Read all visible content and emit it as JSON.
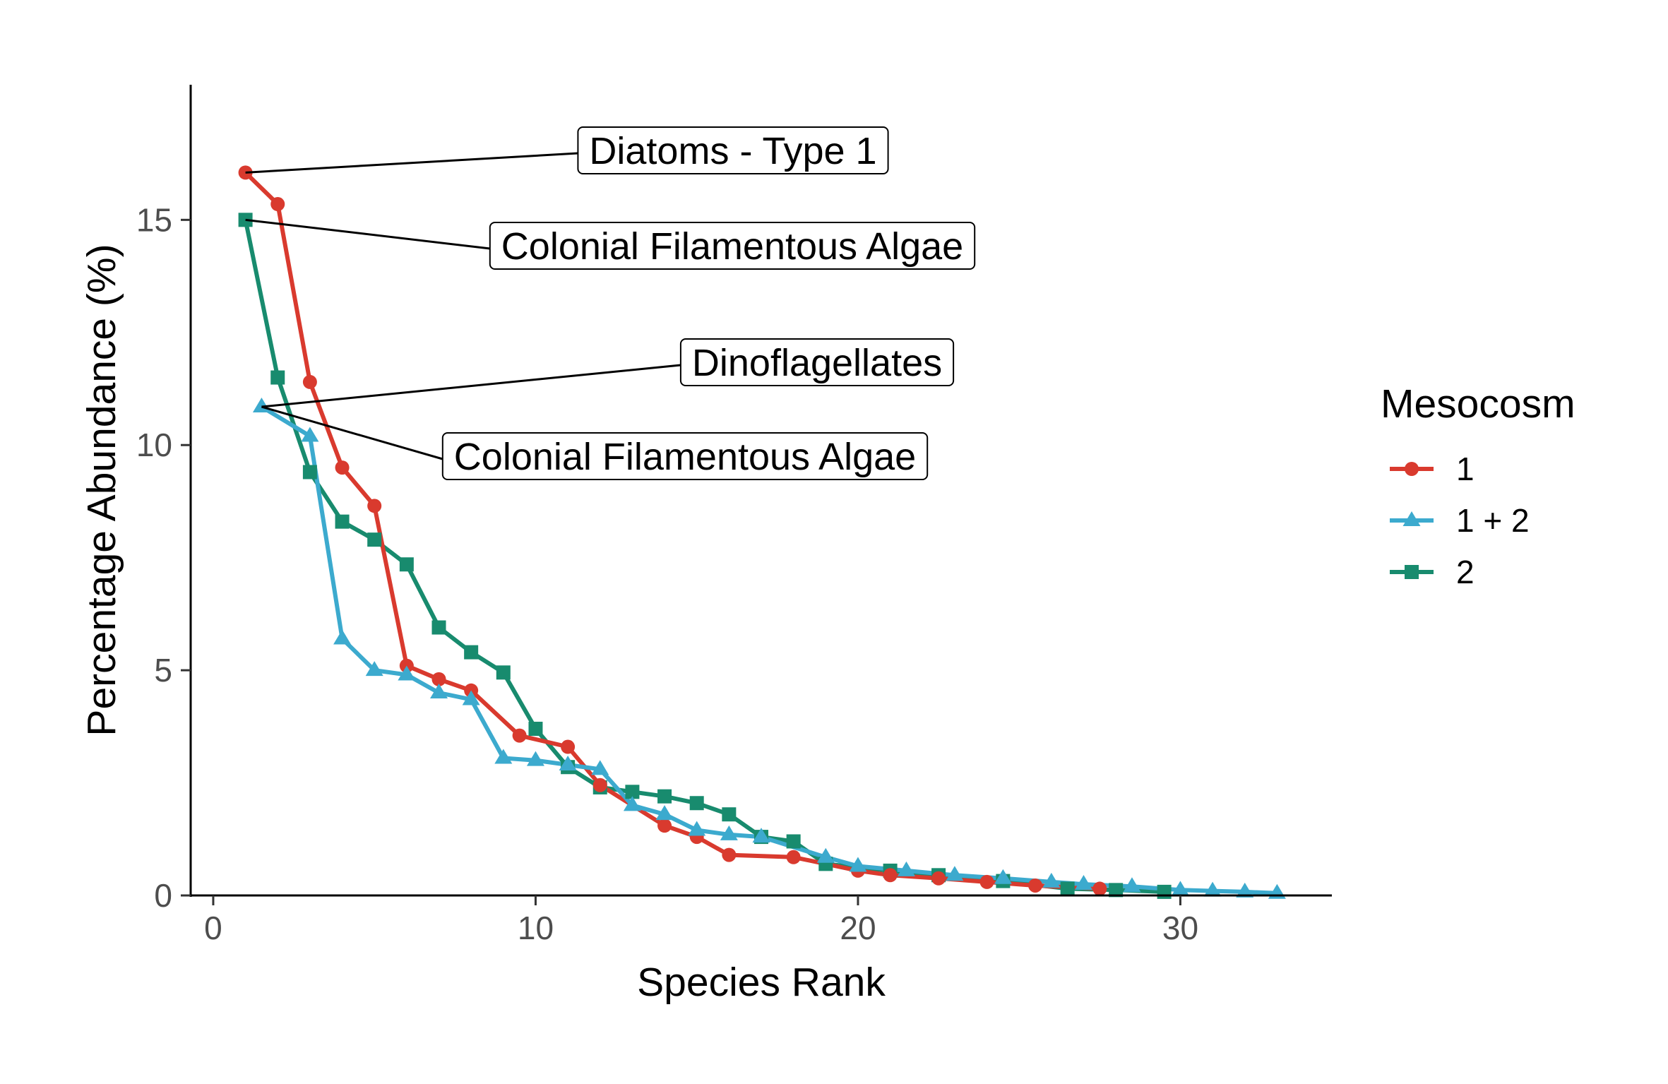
{
  "chart_data": {
    "type": "line",
    "xlabel": "Species Rank",
    "ylabel": "Percentage Abundance (%)",
    "xlim": [
      -0.7,
      34.7
    ],
    "ylim": [
      0,
      18
    ],
    "x_ticks": [
      0,
      10,
      20,
      30
    ],
    "y_ticks": [
      0,
      5,
      10,
      15
    ],
    "grid": false,
    "legend": {
      "title": "Mesocosm",
      "position": "right"
    },
    "series": [
      {
        "name": "1",
        "color": "#d93a2e",
        "marker": "circle",
        "points": [
          [
            1,
            16.05
          ],
          [
            2,
            15.35
          ],
          [
            3,
            11.4
          ],
          [
            4,
            9.5
          ],
          [
            5,
            8.65
          ],
          [
            6,
            5.1
          ],
          [
            7,
            4.8
          ],
          [
            8,
            4.55
          ],
          [
            9.5,
            3.55
          ],
          [
            11,
            3.3
          ],
          [
            12,
            2.45
          ],
          [
            14,
            1.55
          ],
          [
            15,
            1.3
          ],
          [
            16,
            0.9
          ],
          [
            18,
            0.85
          ],
          [
            20,
            0.55
          ],
          [
            21,
            0.45
          ],
          [
            22.5,
            0.38
          ],
          [
            24,
            0.3
          ],
          [
            25.5,
            0.22
          ],
          [
            27.5,
            0.15
          ]
        ]
      },
      {
        "name": "1 + 2",
        "color": "#3caace",
        "marker": "triangle",
        "points": [
          [
            1.5,
            10.85
          ],
          [
            3,
            10.2
          ],
          [
            4,
            5.7
          ],
          [
            5,
            5.0
          ],
          [
            6,
            4.9
          ],
          [
            7,
            4.5
          ],
          [
            8,
            4.35
          ],
          [
            9,
            3.05
          ],
          [
            10,
            3.0
          ],
          [
            11,
            2.9
          ],
          [
            12,
            2.8
          ],
          [
            13,
            2.0
          ],
          [
            14,
            1.8
          ],
          [
            15,
            1.45
          ],
          [
            16,
            1.35
          ],
          [
            17,
            1.3
          ],
          [
            19,
            0.85
          ],
          [
            20,
            0.65
          ],
          [
            21.5,
            0.55
          ],
          [
            23,
            0.45
          ],
          [
            24.5,
            0.38
          ],
          [
            26,
            0.3
          ],
          [
            27,
            0.25
          ],
          [
            28.5,
            0.2
          ],
          [
            30,
            0.12
          ],
          [
            31,
            0.1
          ],
          [
            32,
            0.08
          ],
          [
            33,
            0.05
          ]
        ]
      },
      {
        "name": "2",
        "color": "#188b6e",
        "marker": "square",
        "points": [
          [
            1,
            15.0
          ],
          [
            2,
            11.5
          ],
          [
            3,
            9.4
          ],
          [
            4,
            8.3
          ],
          [
            5,
            7.9
          ],
          [
            6,
            7.35
          ],
          [
            7,
            5.95
          ],
          [
            8,
            5.4
          ],
          [
            9,
            4.95
          ],
          [
            10,
            3.7
          ],
          [
            11,
            2.85
          ],
          [
            12,
            2.4
          ],
          [
            13,
            2.3
          ],
          [
            14,
            2.2
          ],
          [
            15,
            2.05
          ],
          [
            16,
            1.8
          ],
          [
            17,
            1.3
          ],
          [
            18,
            1.2
          ],
          [
            19,
            0.7
          ],
          [
            21,
            0.55
          ],
          [
            22.5,
            0.45
          ],
          [
            24.5,
            0.32
          ],
          [
            26.5,
            0.15
          ],
          [
            28,
            0.12
          ],
          [
            29.5,
            0.08
          ]
        ]
      }
    ],
    "annotations": [
      {
        "text": "Diatoms - Type 1",
        "series": "1",
        "point_index": 0
      },
      {
        "text": "Colonial Filamentous Algae",
        "series": "2",
        "point_index": 0
      },
      {
        "text": "Dinoflagellates",
        "series": "1 + 2",
        "point_index": 0
      },
      {
        "text": "Colonial Filamentous Algae",
        "series": "1 + 2",
        "point_index": 0
      }
    ]
  }
}
